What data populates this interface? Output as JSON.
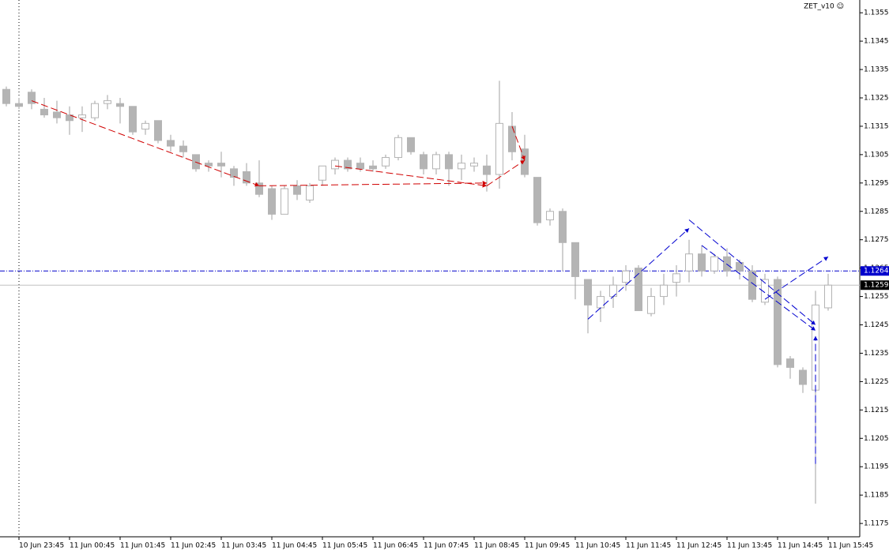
{
  "chart_data": {
    "type": "candlestick",
    "title": "ZET_v10 ☺",
    "categories": [
      null,
      "10 Jun 23:45",
      null,
      null,
      null,
      "11 Jun 00:45",
      null,
      null,
      null,
      "11 Jun 01:45",
      null,
      null,
      null,
      "11 Jun 02:45",
      null,
      null,
      null,
      "11 Jun 03:45",
      null,
      null,
      null,
      "11 Jun 04:45",
      null,
      null,
      null,
      "11 Jun 05:45",
      null,
      null,
      null,
      "11 Jun 06:45",
      null,
      null,
      null,
      "11 Jun 07:45",
      null,
      null,
      null,
      "11 Jun 08:45",
      null,
      null,
      null,
      "11 Jun 09:45",
      null,
      null,
      null,
      "11 Jun 10:45",
      null,
      null,
      null,
      "11 Jun 11:45",
      null,
      null,
      null,
      "11 Jun 12:45",
      null,
      null,
      null,
      "11 Jun 13:45",
      null,
      null,
      null,
      "11 Jun 14:45",
      null,
      null,
      null,
      "11 Jun 15:45"
    ],
    "open": [
      1.1328,
      1.1323,
      1.1327,
      1.1321,
      1.132,
      1.1319,
      1.1318,
      1.1318,
      1.1323,
      1.1323,
      1.1322,
      1.1314,
      1.1317,
      1.131,
      1.1308,
      1.1305,
      1.1302,
      1.1302,
      1.13,
      1.1299,
      1.1295,
      1.1293,
      1.1284,
      1.1294,
      1.1289,
      1.1296,
      1.13,
      1.1303,
      1.1302,
      1.1301,
      1.1301,
      1.1304,
      1.1311,
      1.1305,
      1.13,
      1.1305,
      1.13,
      1.1301,
      1.1301,
      1.1298,
      1.1315,
      1.1307,
      1.1297,
      1.1282,
      1.1285,
      1.1274,
      1.1261,
      1.1251,
      1.1255,
      1.126,
      1.1265,
      1.1249,
      1.1255,
      1.126,
      1.1264,
      1.127,
      1.1264,
      1.1269,
      1.1267,
      1.1264,
      1.1253,
      1.1261,
      1.1233,
      1.1229,
      1.1222,
      1.1251
    ],
    "high": [
      1.1329,
      1.1325,
      1.1328,
      1.1325,
      1.1324,
      1.1322,
      1.1322,
      1.1324,
      1.1326,
      1.1325,
      1.1322,
      1.1317,
      1.1317,
      1.1312,
      1.131,
      1.1305,
      1.1303,
      1.1306,
      1.1301,
      1.1302,
      1.1303,
      1.1294,
      1.1294,
      1.1296,
      1.1295,
      1.1301,
      1.1304,
      1.1304,
      1.1304,
      1.1303,
      1.1305,
      1.1312,
      1.1311,
      1.1306,
      1.1306,
      1.1306,
      1.1305,
      1.1304,
      1.1305,
      1.1331,
      1.132,
      1.1312,
      1.1297,
      1.1286,
      1.1286,
      1.1274,
      1.1261,
      1.1257,
      1.1262,
      1.1266,
      1.1266,
      1.1258,
      1.1263,
      1.1266,
      1.1275,
      1.1273,
      1.127,
      1.1272,
      1.1268,
      1.1266,
      1.1263,
      1.1262,
      1.1234,
      1.123,
      1.1257,
      1.1263
    ],
    "low": [
      1.1322,
      1.1321,
      1.1321,
      1.1318,
      1.1316,
      1.1312,
      1.1313,
      1.1317,
      1.1321,
      1.1316,
      1.1312,
      1.1312,
      1.1309,
      1.1306,
      1.1304,
      1.1299,
      1.1299,
      1.1297,
      1.1294,
      1.1294,
      1.129,
      1.1282,
      1.1284,
      1.1289,
      1.1288,
      1.1294,
      1.1298,
      1.1299,
      1.1299,
      1.1299,
      1.13,
      1.1303,
      1.1305,
      1.1298,
      1.1298,
      1.1294,
      1.1296,
      1.1299,
      1.1292,
      1.1293,
      1.1303,
      1.1297,
      1.128,
      1.128,
      1.1264,
      1.1254,
      1.1242,
      1.1246,
      1.1251,
      1.1257,
      1.125,
      1.1248,
      1.1252,
      1.1255,
      1.126,
      1.1262,
      1.1263,
      1.1262,
      1.1261,
      1.1253,
      1.1252,
      1.123,
      1.1226,
      1.1221,
      1.1182,
      1.125
    ],
    "close": [
      1.1323,
      1.1322,
      1.1323,
      1.1319,
      1.1318,
      1.1317,
      1.1319,
      1.1323,
      1.1324,
      1.1322,
      1.1313,
      1.1316,
      1.131,
      1.1308,
      1.1306,
      1.13,
      1.1301,
      1.1301,
      1.1297,
      1.1295,
      1.1291,
      1.1284,
      1.1293,
      1.1291,
      1.1294,
      1.1301,
      1.1303,
      1.13,
      1.13,
      1.13,
      1.1304,
      1.1311,
      1.1306,
      1.13,
      1.1305,
      1.13,
      1.1302,
      1.1302,
      1.1298,
      1.1316,
      1.1306,
      1.1298,
      1.1281,
      1.1285,
      1.1274,
      1.1262,
      1.1252,
      1.1255,
      1.1259,
      1.1264,
      1.125,
      1.1255,
      1.1259,
      1.1263,
      1.127,
      1.1264,
      1.1269,
      1.1264,
      1.1264,
      1.1254,
      1.1261,
      1.1231,
      1.123,
      1.1224,
      1.1252,
      1.1259
    ],
    "up_color": "#ffffff",
    "down_color": "#b4b4b4",
    "wick_color": "#a0a0a0",
    "ylim": [
      1.11703,
      1.13595
    ],
    "yticks": [
      1.1355,
      1.1345,
      1.1335,
      1.1325,
      1.1315,
      1.1305,
      1.1295,
      1.1285,
      1.1275,
      1.1265,
      1.1255,
      1.1245,
      1.1235,
      1.1225,
      1.1215,
      1.1205,
      1.1195,
      1.1185,
      1.1175
    ],
    "arrows": [
      {
        "color": "#d00000",
        "x": [
          2,
          20
        ],
        "y": [
          1.1324,
          1.1294
        ]
      },
      {
        "color": "#d00000",
        "x": [
          20,
          38
        ],
        "y": [
          1.1294,
          1.1295
        ]
      },
      {
        "color": "#d00000",
        "x": [
          26,
          38
        ],
        "y": [
          1.1301,
          1.1294
        ]
      },
      {
        "color": "#d00000",
        "x": [
          38,
          41
        ],
        "y": [
          1.1294,
          1.1303
        ]
      },
      {
        "color": "#d00000",
        "x": [
          40,
          41
        ],
        "y": [
          1.1315,
          1.1303
        ]
      },
      {
        "color": "#0000d0",
        "x": [
          46,
          54
        ],
        "y": [
          1.1247,
          1.1279
        ]
      },
      {
        "color": "#0000d0",
        "x": [
          54,
          64
        ],
        "y": [
          1.1282,
          1.1245
        ]
      },
      {
        "color": "#0000d0",
        "x": [
          55,
          64
        ],
        "y": [
          1.1273,
          1.1243
        ]
      },
      {
        "color": "#0000d0",
        "x": [
          60,
          65
        ],
        "y": [
          1.1254,
          1.1269
        ]
      },
      {
        "color": "#0000d0",
        "x": [
          64,
          64
        ],
        "y": [
          1.1196,
          1.1241
        ]
      }
    ],
    "price_lines": [
      {
        "value": 1.1264,
        "color": "#0000cc",
        "label_bg": "#0000cc"
      },
      {
        "value": 1.1259,
        "color": "#c0c0c0",
        "label_bg": "#000000"
      }
    ],
    "marker_category": 1
  }
}
